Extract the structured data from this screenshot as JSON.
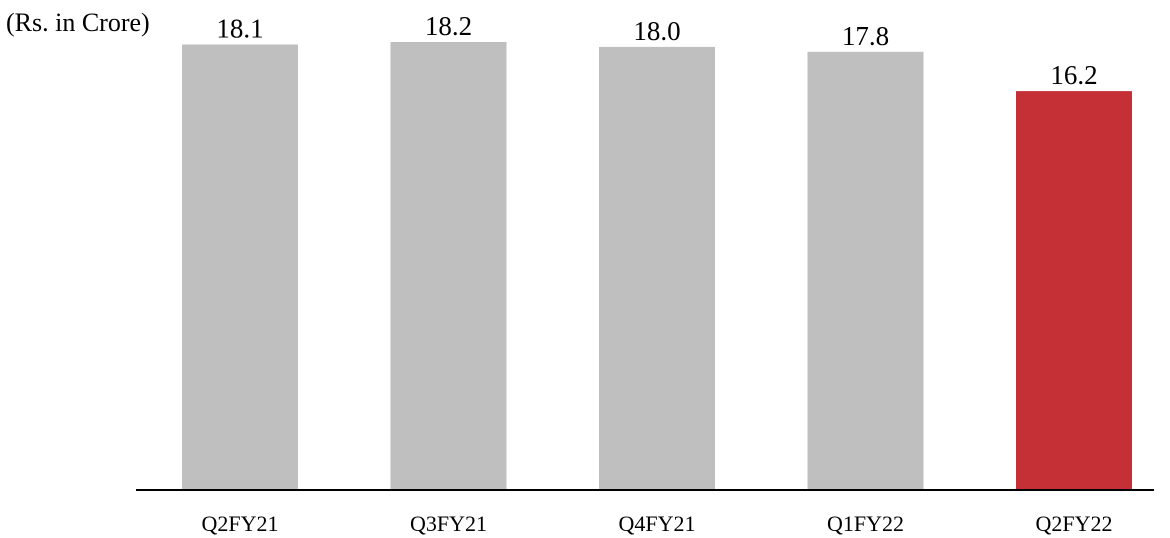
{
  "chart_data": {
    "type": "bar",
    "unit_label": "(Rs. in Crore)",
    "categories": [
      "Q2FY21",
      "Q3FY21",
      "Q4FY21",
      "Q1FY22",
      "Q2FY22"
    ],
    "values": [
      18.1,
      18.2,
      18.0,
      17.8,
      16.2
    ],
    "value_labels": [
      "18.1",
      "18.2",
      "18.0",
      "17.8",
      "16.2"
    ],
    "bar_colors": [
      "#bfbfbf",
      "#bfbfbf",
      "#bfbfbf",
      "#bfbfbf",
      "#c52f36"
    ],
    "axis_color": "#000000",
    "ylim": [
      0,
      18.2
    ],
    "grid": false,
    "legend": "none"
  }
}
